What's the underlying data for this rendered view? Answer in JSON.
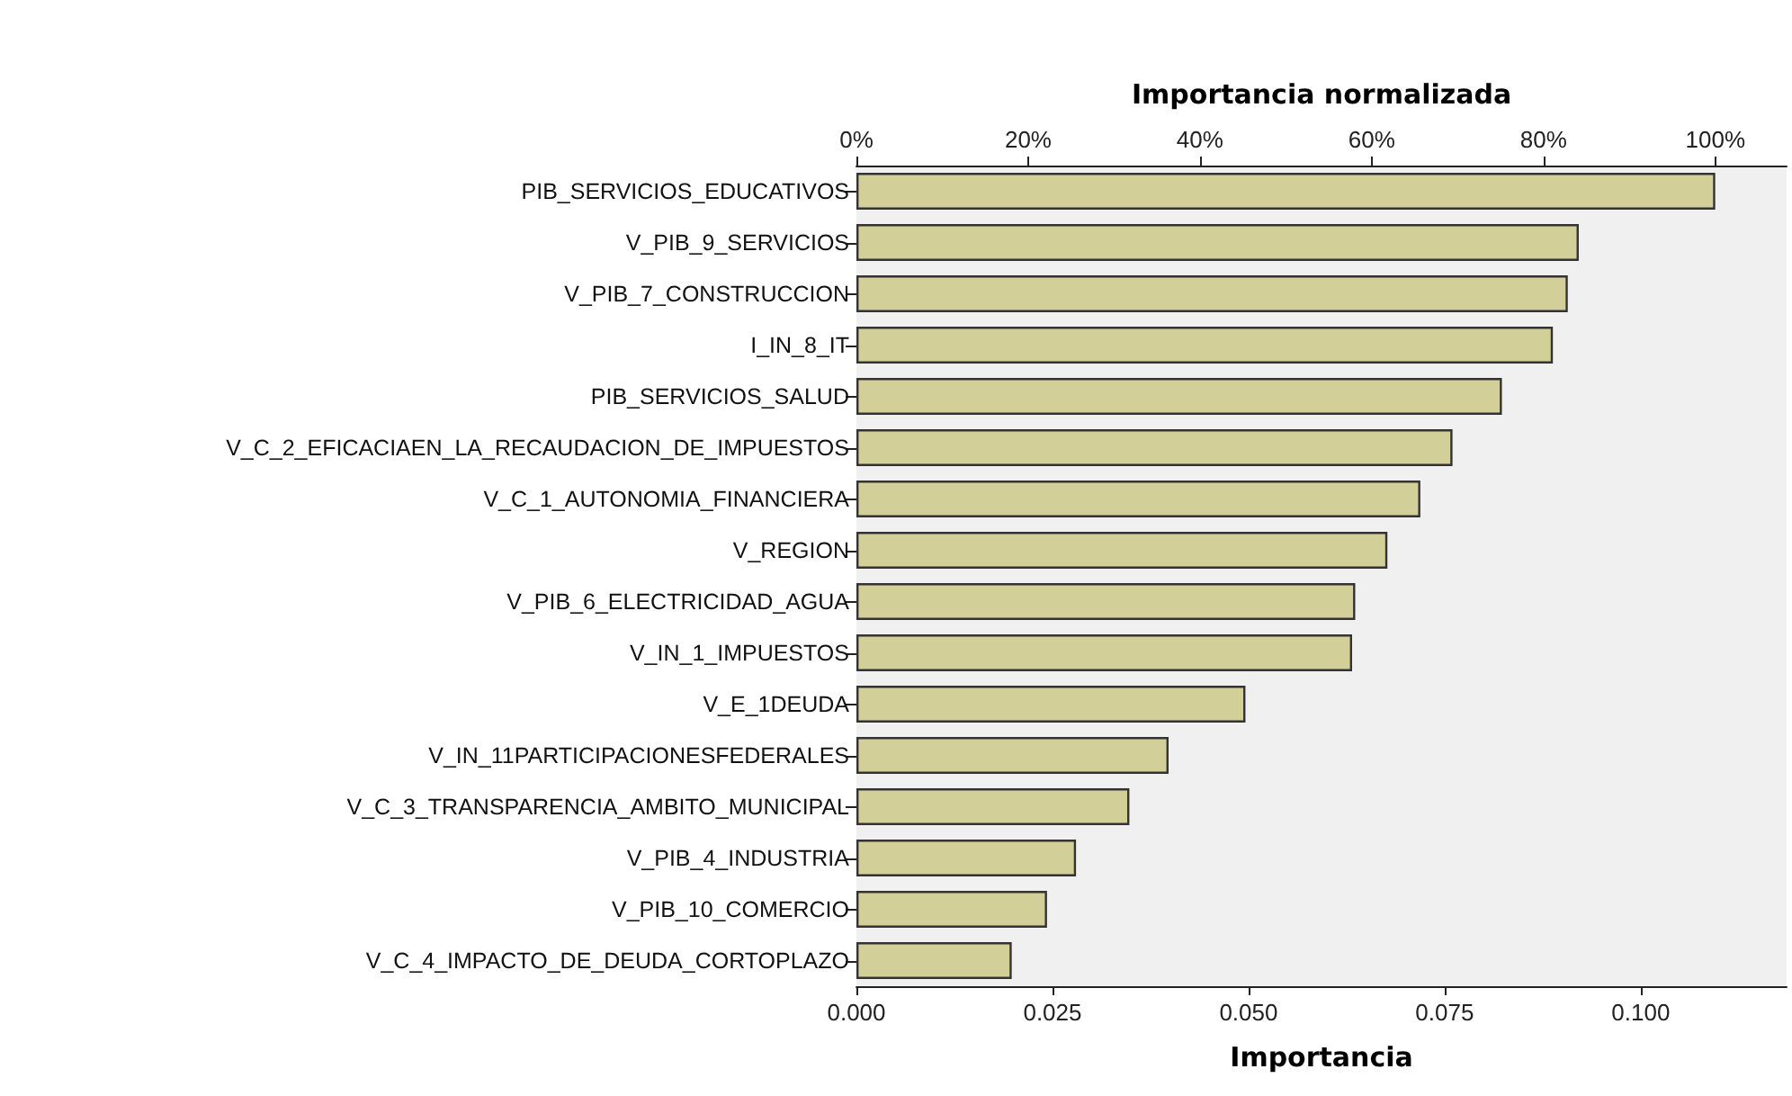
{
  "chart_data": {
    "type": "bar",
    "orientation": "horizontal",
    "xlabel": "Importancia",
    "x2label": "Importancia normalizada",
    "categories": [
      "PIB_SERVICIOS_EDUCATIVOS",
      "V_PIB_9_SERVICIOS",
      "V_PIB_7_CONSTRUCCION",
      "I_IN_8_IT",
      "PIB_SERVICIOS_SALUD",
      "V_C_2_EFICACIAEN_LA_RECAUDACION_DE_IMPUESTOS",
      "V_C_1_AUTONOMIA_FINANCIERA",
      "V_REGION",
      "V_PIB_6_ELECTRICIDAD_AGUA",
      "V_IN_1_IMPUESTOS",
      "V_E_1DEUDA",
      "V_IN_11PARTICIPACIONESFEDERALES",
      "V_C_3_TRANSPARENCIA_AMBITO_MUNICIPAL",
      "V_PIB_4_INDUSTRIA",
      "V_PIB_10_COMERCIO",
      "V_C_4_IMPACTO_DE_DEUDA_CORTOPLAZO"
    ],
    "values": [
      0.1095,
      0.0921,
      0.0907,
      0.0888,
      0.0823,
      0.076,
      0.0719,
      0.0677,
      0.0636,
      0.0632,
      0.0496,
      0.0398,
      0.0348,
      0.028,
      0.0243,
      0.0198
    ],
    "color": "#d3cf98",
    "xlim": [
      0,
      0.1186
    ],
    "xticks": [
      {
        "value": 0,
        "label": "0.000"
      },
      {
        "value": 0.025,
        "label": "0.025"
      },
      {
        "value": 0.05,
        "label": "0.050"
      },
      {
        "value": 0.075,
        "label": "0.075"
      },
      {
        "value": 0.1,
        "label": "0.100"
      }
    ],
    "x2lim": [
      0,
      108.3
    ],
    "x2ticks": [
      {
        "value": 0,
        "label": "0%"
      },
      {
        "value": 20,
        "label": "20%"
      },
      {
        "value": 40,
        "label": "40%"
      },
      {
        "value": 60,
        "label": "60%"
      },
      {
        "value": 80,
        "label": "80%"
      },
      {
        "value": 100,
        "label": "100%"
      }
    ],
    "grid": false
  }
}
